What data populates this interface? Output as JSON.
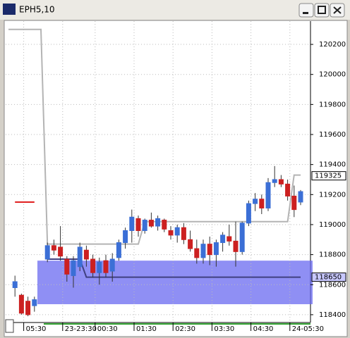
{
  "window_title": "EPH5,10",
  "chart_data": {
    "type": "candlestick",
    "categories": [
      null,
      null,
      null,
      "05:30",
      null,
      null,
      null,
      null,
      null,
      "23-23:30",
      null,
      null,
      null,
      null,
      "00:30",
      null,
      null,
      null,
      null,
      null,
      "01:30",
      null,
      null,
      null,
      null,
      null,
      "02:30",
      null,
      null,
      null,
      null,
      null,
      "03:30",
      null,
      null,
      null,
      null,
      null,
      "04:30",
      null,
      null,
      null,
      null,
      null,
      "24-05:30",
      null
    ],
    "open": [
      null,
      118580,
      118530,
      118490,
      118460,
      null,
      118770,
      118860,
      118850,
      118770,
      118660,
      118720,
      118830,
      118770,
      118680,
      118760,
      118690,
      118780,
      118880,
      118960,
      119040,
      118960,
      119030,
      118990,
      119030,
      118960,
      118930,
      118980,
      118900,
      118840,
      118780,
      118870,
      118800,
      118880,
      118920,
      118890,
      118820,
      119010,
      119140,
      119170,
      119110,
      119280,
      119300,
      119270,
      119190,
      119150
    ],
    "high": [
      null,
      118660,
      118540,
      118520,
      118520,
      null,
      118880,
      118900,
      118990,
      118790,
      118790,
      118880,
      118860,
      118800,
      118780,
      118800,
      118810,
      118900,
      118980,
      119100,
      119060,
      119040,
      119080,
      119060,
      119040,
      118990,
      119000,
      119010,
      118960,
      118900,
      118900,
      118920,
      118900,
      118950,
      119000,
      119020,
      119020,
      119160,
      119210,
      119200,
      119310,
      119390,
      119330,
      119300,
      119260,
      119230
    ],
    "low": [
      null,
      118520,
      118400,
      118390,
      118420,
      null,
      118750,
      118800,
      118760,
      118620,
      118580,
      118690,
      118720,
      118650,
      118600,
      118650,
      118620,
      118760,
      118840,
      118880,
      118920,
      118940,
      118980,
      118960,
      118950,
      118900,
      118880,
      118870,
      118820,
      118740,
      118740,
      118730,
      118720,
      118820,
      118860,
      118720,
      118800,
      118990,
      119090,
      119070,
      119090,
      119250,
      119250,
      119160,
      119050,
      119130
    ],
    "close": [
      null,
      118620,
      118410,
      118400,
      118500,
      null,
      118860,
      118830,
      118790,
      118670,
      118760,
      118850,
      118770,
      118680,
      118750,
      118680,
      118770,
      118880,
      118960,
      119050,
      118960,
      119030,
      118990,
      119040,
      118970,
      118930,
      118980,
      118900,
      118840,
      118780,
      118870,
      118800,
      118880,
      118930,
      118890,
      118820,
      119010,
      119140,
      119170,
      119110,
      119280,
      119300,
      119270,
      119190,
      119100,
      119220
    ],
    "up_color": "#3b6fd6",
    "down_color": "#cc2020",
    "lines": [
      {
        "color": "#b4b4b4",
        "values": [
          120300,
          120300,
          120300,
          120300,
          120300,
          120300,
          118870,
          118870,
          118870,
          118870,
          118870,
          118870,
          118870,
          118870,
          118870,
          118870,
          118870,
          118870,
          118870,
          118870,
          118870,
          119020,
          119020,
          119020,
          119020,
          119020,
          119020,
          119020,
          119020,
          119020,
          119020,
          119020,
          119020,
          119020,
          119020,
          119020,
          119020,
          119020,
          119020,
          119020,
          119020,
          119020,
          119020,
          119020,
          119330,
          119330
        ]
      },
      {
        "color": "#e02020",
        "values": [
          null,
          119150,
          119150,
          119150,
          119150,
          null,
          null,
          null,
          null,
          null,
          null,
          null,
          null,
          null,
          null,
          null,
          null,
          null,
          null,
          null,
          null,
          null,
          null,
          null,
          null,
          null,
          null,
          null,
          null,
          null,
          null,
          null,
          null,
          null,
          null,
          null,
          null,
          null,
          null,
          null,
          null,
          null,
          null,
          null,
          null,
          null
        ]
      },
      {
        "color": "#404080",
        "values": [
          null,
          null,
          null,
          null,
          null,
          null,
          118770,
          118770,
          118770,
          118770,
          118770,
          118770,
          118650,
          118650,
          118650,
          118650,
          118650,
          118650,
          118650,
          118650,
          118650,
          118650,
          118650,
          118650,
          118650,
          118650,
          118650,
          118650,
          118650,
          118650,
          118650,
          118650,
          118650,
          118650,
          118650,
          118650,
          118650,
          118650,
          118650,
          118650,
          118650,
          118650,
          118650,
          118650,
          118650,
          118650
        ]
      }
    ],
    "zone": {
      "low": 118470,
      "high": 118760,
      "color": "#6a6af0"
    },
    "price_flags": [
      119325,
      118650
    ],
    "ylim": [
      118348,
      120355
    ],
    "yticks": [
      118400,
      118600,
      118800,
      119000,
      119200,
      119400,
      119600,
      119800,
      120000,
      120200
    ],
    "grid": true
  }
}
